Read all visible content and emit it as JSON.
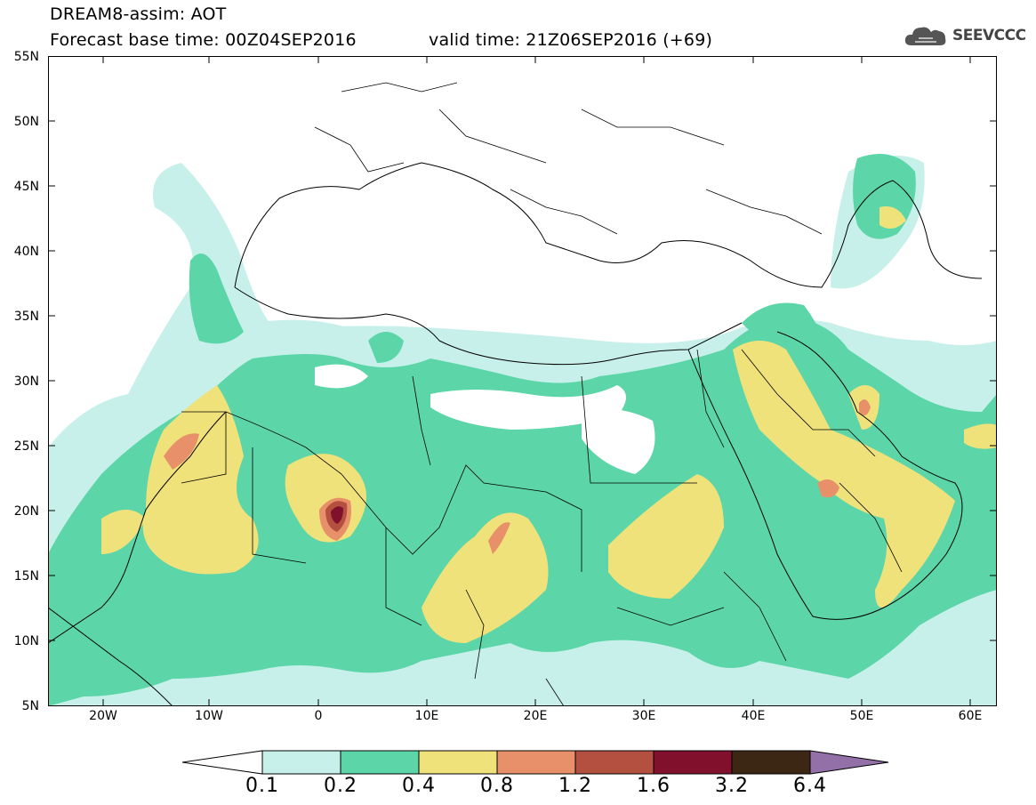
{
  "header": {
    "title_line1": "DREAM8-assim: AOT",
    "title_line2": "Forecast base time: 00Z04SEP2016",
    "valid_time": "valid time: 21Z06SEP2016 (+69)"
  },
  "logo": {
    "text": "SEEVCCC",
    "icon": "cloud-icon"
  },
  "map": {
    "region": "North Africa, Europe and Middle East",
    "lon_range": [
      -25,
      65
    ],
    "lat_range": [
      5,
      55
    ],
    "y_labels": [
      "55N",
      "50N",
      "45N",
      "40N",
      "35N",
      "30N",
      "25N",
      "20N",
      "15N",
      "10N",
      "5N"
    ],
    "x_labels": [
      "20W",
      "10W",
      "0",
      "10E",
      "20E",
      "30E",
      "40E",
      "50E",
      "60E"
    ],
    "field": "Aerosol Optical Thickness"
  },
  "colorbar": {
    "labels": [
      "0.1",
      "0.2",
      "0.4",
      "0.8",
      "1.2",
      "1.6",
      "3.2",
      "6.4"
    ],
    "colors": [
      "#c8f0ea",
      "#5cd6a8",
      "#f0e27a",
      "#e8906a",
      "#b45040",
      "#80102c",
      "#3c2614",
      "#9470a8"
    ]
  }
}
